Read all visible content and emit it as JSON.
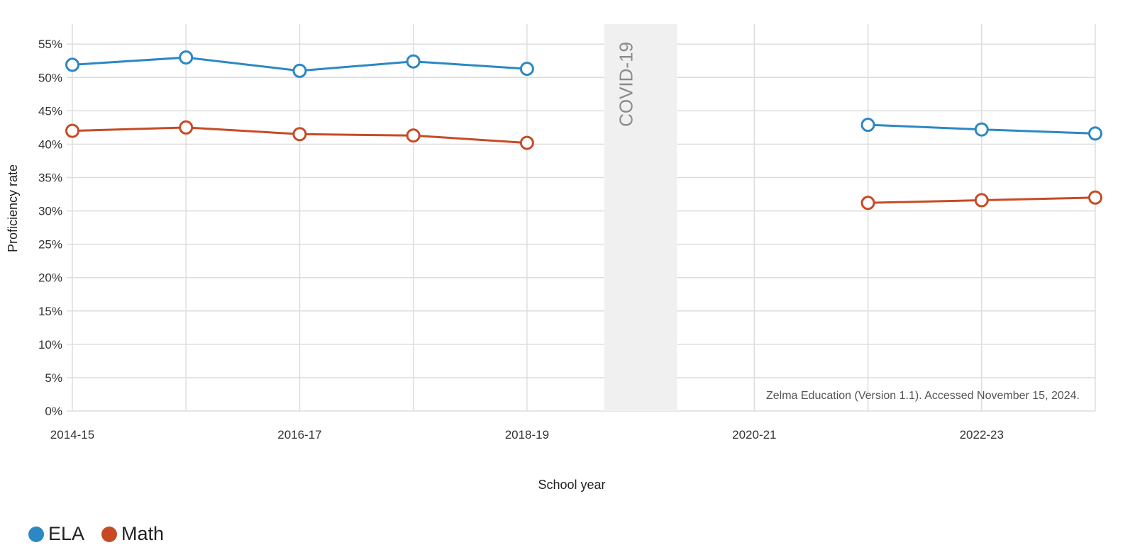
{
  "chart_data": {
    "type": "line",
    "xlabel": "School year",
    "ylabel": "Proficiency rate",
    "x_categories": [
      "2014-15",
      "2015-16",
      "2016-17",
      "2017-18",
      "2018-19",
      "2019-20",
      "2020-21",
      "2021-22",
      "2022-23",
      "2023-24"
    ],
    "x_tick_labels": [
      "2014-15",
      "2016-17",
      "2018-19",
      "2020-21",
      "2022-23"
    ],
    "y_ticks": [
      0,
      5,
      10,
      15,
      20,
      25,
      30,
      35,
      40,
      45,
      50,
      55
    ],
    "y_tick_labels": [
      "0%",
      "5%",
      "10%",
      "15%",
      "20%",
      "25%",
      "30%",
      "35%",
      "40%",
      "45%",
      "50%",
      "55%"
    ],
    "ylim": [
      0,
      58
    ],
    "grid": true,
    "legend_position": "bottom-left",
    "shaded_region": {
      "label": "COVID-19",
      "center": "2019-20"
    },
    "annotation": "Zelma Education (Version 1.1). Accessed November 15, 2024.",
    "series": [
      {
        "name": "ELA",
        "color": "#2b88c4",
        "points": [
          {
            "x": "2014-15",
            "y": 51.9
          },
          {
            "x": "2015-16",
            "y": 53.0
          },
          {
            "x": "2016-17",
            "y": 51.0
          },
          {
            "x": "2017-18",
            "y": 52.4
          },
          {
            "x": "2018-19",
            "y": 51.3
          },
          {
            "x": "2021-22",
            "y": 42.9
          },
          {
            "x": "2022-23",
            "y": 42.2
          },
          {
            "x": "2023-24",
            "y": 41.6
          }
        ]
      },
      {
        "name": "Math",
        "color": "#c64b25",
        "points": [
          {
            "x": "2014-15",
            "y": 42.0
          },
          {
            "x": "2015-16",
            "y": 42.5
          },
          {
            "x": "2016-17",
            "y": 41.5
          },
          {
            "x": "2017-18",
            "y": 41.3
          },
          {
            "x": "2018-19",
            "y": 40.2
          },
          {
            "x": "2021-22",
            "y": 31.2
          },
          {
            "x": "2022-23",
            "y": 31.6
          },
          {
            "x": "2023-24",
            "y": 32.0
          }
        ]
      }
    ]
  }
}
